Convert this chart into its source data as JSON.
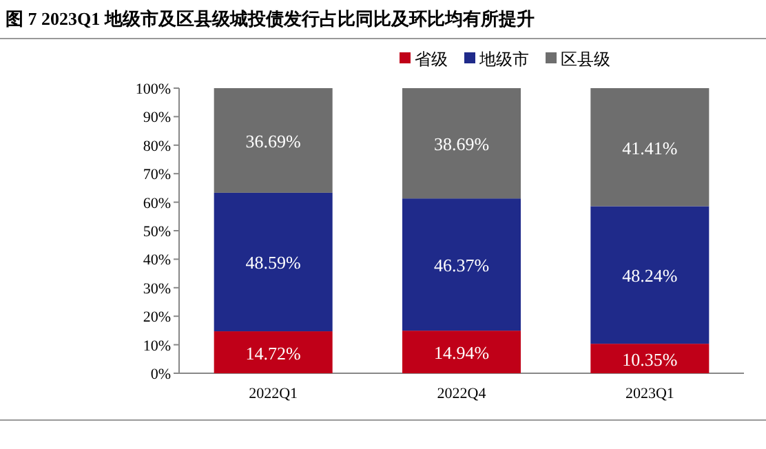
{
  "chart_data": {
    "type": "bar",
    "stacked": true,
    "title": "图 7  2023Q1 地级市及区县级城投债发行占比同比及环比均有所提升",
    "categories": [
      "2022Q1",
      "2022Q4",
      "2023Q1"
    ],
    "series": [
      {
        "name": "省级",
        "color": "#c00018",
        "values": [
          14.72,
          14.94,
          10.35
        ],
        "value_labels": [
          "14.72%",
          "14.94%",
          "10.35%"
        ]
      },
      {
        "name": "地级市",
        "color": "#1f2a8a",
        "values": [
          48.59,
          46.37,
          48.24
        ],
        "value_labels": [
          "48.59%",
          "46.37%",
          "48.24%"
        ]
      },
      {
        "name": "区县级",
        "color": "#6e6e6e",
        "values": [
          36.69,
          38.69,
          41.41
        ],
        "value_labels": [
          "36.69%",
          "38.69%",
          "41.41%"
        ]
      }
    ],
    "ylim": [
      0,
      100
    ],
    "yticks": [
      {
        "value": 0,
        "label": "0%"
      },
      {
        "value": 10,
        "label": "10%"
      },
      {
        "value": 20,
        "label": "20%"
      },
      {
        "value": 30,
        "label": "30%"
      },
      {
        "value": 40,
        "label": "40%"
      },
      {
        "value": 50,
        "label": "50%"
      },
      {
        "value": 60,
        "label": "60%"
      },
      {
        "value": 70,
        "label": "70%"
      },
      {
        "value": 80,
        "label": "80%"
      },
      {
        "value": 90,
        "label": "90%"
      },
      {
        "value": 100,
        "label": "100%"
      }
    ],
    "legend": "top",
    "grid": false
  }
}
